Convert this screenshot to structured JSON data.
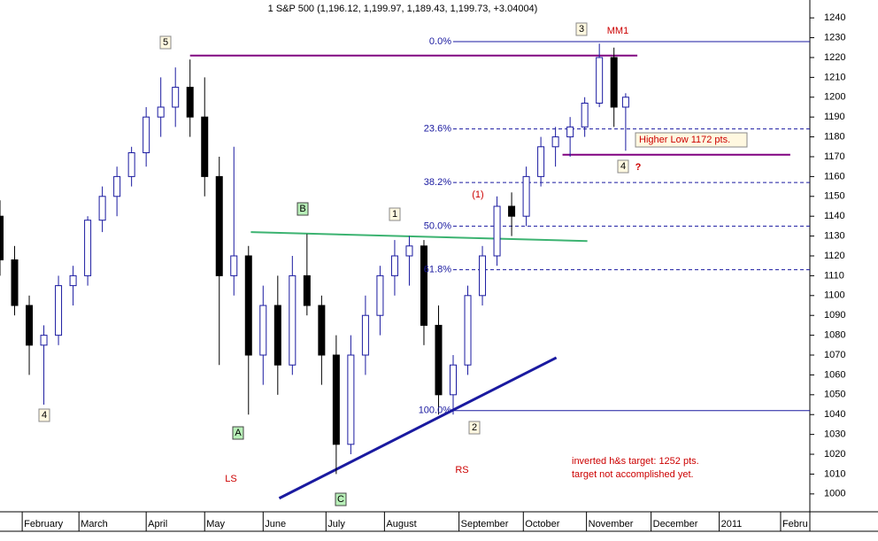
{
  "chart_data": {
    "type": "candlestick",
    "title": "1 S&P 500 (1,196.12, 1,199.97, 1,189.43, 1,199.73, +3.04004)",
    "xlim": [
      0,
      277
    ],
    "xticks": [
      {
        "value": 7.6,
        "label": "February"
      },
      {
        "value": 27,
        "label": "March"
      },
      {
        "value": 50,
        "label": "April"
      },
      {
        "value": 70,
        "label": "May"
      },
      {
        "value": 90,
        "label": "June"
      },
      {
        "value": 111.5,
        "label": "July"
      },
      {
        "value": 131.5,
        "label": "August"
      },
      {
        "value": 157,
        "label": "September"
      },
      {
        "value": 179,
        "label": "October"
      },
      {
        "value": 200.6,
        "label": "November"
      },
      {
        "value": 222.7,
        "label": "December"
      },
      {
        "value": 246,
        "label": "2011"
      },
      {
        "value": 267,
        "label": "Febru"
      }
    ],
    "ylim": [
      991,
      1249
    ],
    "yticks": [
      1000,
      1010,
      1020,
      1030,
      1040,
      1050,
      1060,
      1070,
      1080,
      1090,
      1100,
      1110,
      1120,
      1130,
      1140,
      1150,
      1160,
      1170,
      1180,
      1190,
      1200,
      1210,
      1220,
      1230,
      1240
    ],
    "up_color": "#1a1aa0",
    "down_color": "#000000",
    "candles": {
      "x": [
        0,
        5,
        10,
        15,
        20,
        25,
        30,
        35,
        40,
        45,
        50,
        55,
        60,
        65,
        70,
        75,
        80,
        85,
        90,
        95,
        100,
        105,
        110,
        115,
        120,
        125,
        130,
        135,
        140,
        145,
        150,
        155,
        160,
        165,
        170,
        175,
        180,
        185,
        190,
        195,
        200,
        205,
        210,
        214
      ],
      "open": [
        1140,
        1118,
        1095,
        1075,
        1080,
        1105,
        1110,
        1138,
        1150,
        1160,
        1172,
        1190,
        1195,
        1205,
        1190,
        1160,
        1110,
        1120,
        1070,
        1095,
        1065,
        1110,
        1095,
        1070,
        1025,
        1070,
        1090,
        1110,
        1120,
        1125,
        1085,
        1050,
        1065,
        1100,
        1120,
        1145,
        1140,
        1160,
        1175,
        1180,
        1185,
        1197,
        1220,
        1195
      ],
      "high": [
        1148,
        1125,
        1100,
        1085,
        1110,
        1115,
        1140,
        1155,
        1165,
        1175,
        1195,
        1210,
        1215,
        1219,
        1210,
        1170,
        1175,
        1125,
        1105,
        1110,
        1120,
        1131,
        1100,
        1080,
        1080,
        1100,
        1115,
        1128,
        1130,
        1128,
        1095,
        1070,
        1105,
        1125,
        1150,
        1152,
        1165,
        1180,
        1185,
        1190,
        1200,
        1227,
        1225,
        1202
      ],
      "low": [
        1110,
        1090,
        1060,
        1045,
        1075,
        1095,
        1105,
        1132,
        1140,
        1155,
        1165,
        1180,
        1185,
        1180,
        1150,
        1065,
        1100,
        1040,
        1055,
        1050,
        1060,
        1090,
        1055,
        1010,
        1020,
        1060,
        1080,
        1100,
        1105,
        1075,
        1040,
        1040,
        1060,
        1095,
        1115,
        1130,
        1135,
        1155,
        1165,
        1170,
        1180,
        1195,
        1185,
        1173
      ],
      "close": [
        1118,
        1095,
        1075,
        1080,
        1105,
        1110,
        1138,
        1150,
        1160,
        1172,
        1190,
        1195,
        1205,
        1190,
        1160,
        1110,
        1120,
        1070,
        1095,
        1065,
        1110,
        1095,
        1070,
        1025,
        1070,
        1090,
        1110,
        1120,
        1125,
        1085,
        1050,
        1065,
        1100,
        1120,
        1145,
        1140,
        1160,
        1175,
        1180,
        1185,
        1197,
        1220,
        1195,
        1200
      ]
    },
    "fib_levels": [
      {
        "value": 1228,
        "label": "0.0%"
      },
      {
        "value": 1184,
        "label": "23.6%"
      },
      {
        "value": 1157,
        "label": "38.2%"
      },
      {
        "value": 1135,
        "label": "50.0%"
      },
      {
        "value": 1113,
        "label": "61.8%"
      },
      {
        "value": 1042,
        "label": "100.0%"
      }
    ],
    "fib_x": [
      155,
      277
    ],
    "lines": [
      {
        "color": "#800080",
        "x": [
          65,
          218
        ],
        "y": [
          1221,
          1221
        ]
      },
      {
        "color": "#3cb371",
        "x": [
          85.8,
          200.9
        ],
        "y": [
          1132,
          1127.5
        ]
      },
      {
        "color": "#1a1aa0",
        "x": [
          95.5,
          190.3
        ],
        "y": [
          997.8,
          1068.7
        ]
      },
      {
        "color": "#800080",
        "x": [
          192.4,
          270.3
        ],
        "y": [
          1171,
          1171
        ]
      }
    ],
    "wave_labels": [
      "5",
      "B",
      "1",
      "3",
      "4",
      "A",
      "C",
      "2",
      "4"
    ],
    "annotations": [
      "LS",
      "RS",
      "(1)",
      "MM1",
      "?",
      "Higher Low  1172 pts.",
      "inverted h&s target: 1252 pts.",
      "target not accomplished yet."
    ]
  }
}
